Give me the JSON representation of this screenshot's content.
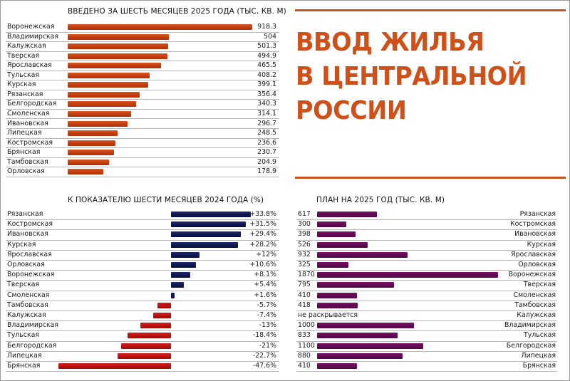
{
  "headline": {
    "lines": [
      "ВВОД ЖИЛЬЯ",
      "В ЦЕНТРАЛЬНОЙ",
      "РОССИИ"
    ],
    "color": "#d0501a"
  },
  "chart_data": [
    {
      "id": "commissioned_h1_2025",
      "type": "bar",
      "orientation": "horizontal",
      "title": "ВВЕДЕНО ЗА ШЕСТЬ МЕСЯЦЕВ 2025 ГОДА (ТЫС. КВ. М)",
      "color": "#c23a0c",
      "categories": [
        "Воронежская",
        "Владимирская",
        "Калужская",
        "Тверская",
        "Ярославская",
        "Тульская",
        "Курская",
        "Рязанская",
        "Белгородская",
        "Смоленская",
        "Ивановская",
        "Липецкая",
        "Костромская",
        "Брянская",
        "Тамбовская",
        "Орловская"
      ],
      "values": [
        918.3,
        504,
        501.3,
        494.9,
        465.5,
        408.2,
        399.1,
        356.4,
        340.3,
        314.1,
        296.7,
        248.5,
        236.6,
        230.7,
        204.9,
        178.9
      ],
      "value_labels": [
        "918.3",
        "504",
        "501.3",
        "494.9",
        "465.5",
        "408.2",
        "399.1",
        "356.4",
        "340.3",
        "314.1",
        "296.7",
        "248.5",
        "236.6",
        "230.7",
        "204.9",
        "178.9"
      ],
      "xlim": [
        0,
        918.3
      ]
    },
    {
      "id": "vs_h1_2024",
      "type": "bar",
      "orientation": "horizontal-diverging",
      "title": "К ПОКАЗАТЕЛЮ ШЕСТИ МЕСЯЦЕВ 2024 ГОДА (%)",
      "positive_color": "#0e1650",
      "negative_color": "#b81010",
      "categories": [
        "Рязанская",
        "Костромская",
        "Ивановская",
        "Курская",
        "Ярославская",
        "Орловская",
        "Воронежская",
        "Тверская",
        "Смоленская",
        "Тамбовская",
        "Калужская",
        "Владимирская",
        "Тульская",
        "Белгородская",
        "Липецкая",
        "Брянская"
      ],
      "values": [
        33.8,
        31.5,
        29.4,
        28.2,
        12,
        10.6,
        8.1,
        5.4,
        1.6,
        -5.7,
        -7.4,
        -13,
        -18.4,
        -21,
        -22.7,
        -47.6
      ],
      "value_labels": [
        "+33.8%",
        "+31.5%",
        "+29.4%",
        "+28.2%",
        "+12%",
        "+10.6%",
        "+8.1%",
        "+5.4%",
        "+1.6%",
        "-5.7%",
        "-7.4%",
        "-13%",
        "-18.4%",
        "-21%",
        "-22.7%",
        "-47.6%"
      ],
      "xlim": [
        -47.6,
        33.8
      ]
    },
    {
      "id": "plan_2025",
      "type": "bar",
      "orientation": "horizontal",
      "title": "ПЛАН НА 2025 ГОД (ТЫС. КВ. М)",
      "color": "#5e0a50",
      "categories": [
        "Рязанская",
        "Костромская",
        "Ивановская",
        "Курская",
        "Ярославская",
        "Орловская",
        "Воронежская",
        "Тверская",
        "Смоленская",
        "Тамбовская",
        "Калужская",
        "Владимирская",
        "Тульская",
        "Белгородская",
        "Липецкая",
        "Брянская"
      ],
      "values": [
        617,
        300,
        398,
        526,
        932,
        325,
        1870,
        795,
        410,
        418,
        null,
        1000,
        833,
        1100,
        880,
        410
      ],
      "value_labels": [
        "617",
        "300",
        "398",
        "526",
        "932",
        "325",
        "1870",
        "795",
        "410",
        "418",
        "не раскрывается",
        "1000",
        "833",
        "1100",
        "880",
        "410"
      ],
      "xlim": [
        0,
        1870
      ]
    }
  ]
}
